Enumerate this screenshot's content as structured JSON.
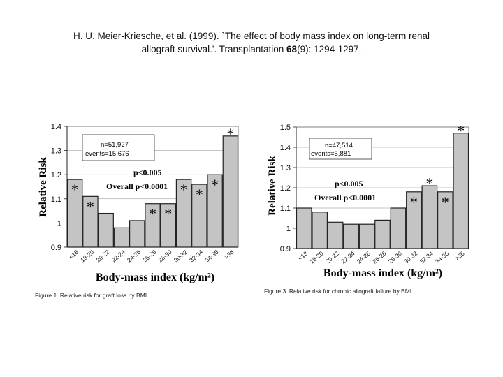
{
  "citation": {
    "line1": "H. U. Meier-Kriesche, et al. (1999). `The effect of body mass index on long-term renal",
    "line2_pre": "allograft survival.'. Transplantation ",
    "line2_vol": "68",
    "line2_post": "(9): 1294-1297."
  },
  "chart_data": [
    {
      "type": "bar",
      "title": "Figure 1. Relative risk for graft loss by BMI.",
      "xlabel": "Body-mass index (kg/m²)",
      "ylabel": "Relative Risk",
      "categories": [
        "<18",
        "18-20",
        "20-22",
        "22-24",
        "24-26",
        "26-28",
        "28-30",
        "30-32",
        "32-34",
        "34-36",
        ">36"
      ],
      "values": [
        1.18,
        1.11,
        1.04,
        0.98,
        1.01,
        1.08,
        1.08,
        1.18,
        1.16,
        1.2,
        1.36
      ],
      "significant": [
        true,
        true,
        false,
        false,
        false,
        true,
        true,
        true,
        true,
        true,
        true
      ],
      "ylim": [
        0.9,
        1.4
      ],
      "yticks": [
        "0.9",
        "1",
        "1.1",
        "1.2",
        "1.3",
        "1.4"
      ],
      "grid": true,
      "annotations": {
        "n": "n=51,927",
        "events": "events=15,676",
        "p_trend": "p<0.005",
        "p_overall": "Overall p<0.0001"
      }
    },
    {
      "type": "bar",
      "title": "Figure 3. Relative risk for chronic allograft failure by BMI.",
      "xlabel": "Body-mass index (kg/m²)",
      "ylabel": "Relative Risk",
      "categories": [
        "<18",
        "18-20",
        "20-22",
        "22-24",
        "24-26",
        "26-28",
        "28-30",
        "30-32",
        "32-34",
        "34-36",
        ">36"
      ],
      "values": [
        1.1,
        1.08,
        1.03,
        1.02,
        1.02,
        1.04,
        1.1,
        1.18,
        1.21,
        1.18,
        1.47
      ],
      "significant": [
        false,
        false,
        false,
        false,
        false,
        false,
        false,
        true,
        true,
        true,
        true
      ],
      "ylim": [
        0.9,
        1.5
      ],
      "yticks": [
        "0.9",
        "1",
        "1.1",
        "1.2",
        "1.3",
        "1.4",
        "1.5"
      ],
      "grid": true,
      "annotations": {
        "n": "n=47,514",
        "events": "events=5,881",
        "p_trend": "p<0.005",
        "p_overall": "Overall p<0.0001"
      }
    }
  ]
}
